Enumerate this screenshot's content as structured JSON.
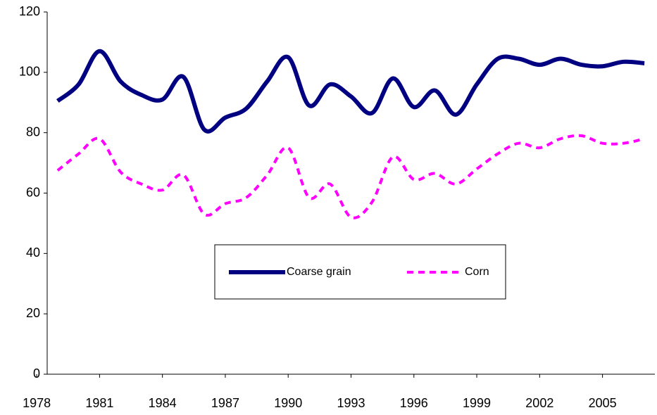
{
  "chart_data": {
    "type": "line",
    "x": [
      1979,
      1980,
      1981,
      1982,
      1983,
      1984,
      1985,
      1986,
      1987,
      1988,
      1989,
      1990,
      1991,
      1992,
      1993,
      1994,
      1995,
      1996,
      1997,
      1998,
      1999,
      2000,
      2001,
      2002,
      2003,
      2004,
      2005,
      2006,
      2007
    ],
    "series": [
      {
        "name": "Coarse grain",
        "color": "#000080",
        "dash": false,
        "values": [
          90.5,
          96,
          107,
          97,
          92.5,
          91,
          98.5,
          81,
          85,
          88,
          97,
          105,
          89,
          96,
          92,
          86.5,
          98,
          88.5,
          94,
          86,
          96,
          104.5,
          104.5,
          102.5,
          104.5,
          102.5,
          102,
          103.5,
          103
        ]
      },
      {
        "name": "Corn",
        "color": "#ff00ff",
        "dash": true,
        "values": [
          67.5,
          73,
          78,
          67,
          63,
          61,
          66,
          53,
          56.5,
          58.5,
          66,
          75,
          58.5,
          63,
          52,
          57,
          72,
          64.5,
          66.5,
          63,
          68,
          73,
          76.5,
          75,
          78,
          79,
          76.5,
          76.5,
          78
        ]
      }
    ],
    "xlim": [
      1978.5,
      2007.5
    ],
    "xticks": [
      1978,
      1981,
      1984,
      1987,
      1990,
      1993,
      1996,
      1999,
      2002,
      2005
    ],
    "ylim": [
      0,
      120
    ],
    "yticks": [
      0,
      20,
      40,
      60,
      80,
      100,
      120
    ],
    "grid": false
  }
}
